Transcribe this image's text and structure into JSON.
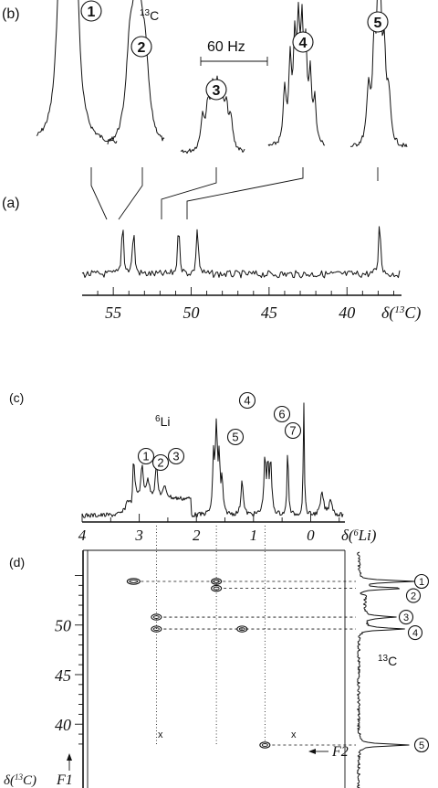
{
  "chart_data": [
    {
      "type": "line",
      "panel": "(b)",
      "nucleus": "13C",
      "scale_bar_label": "60 Hz",
      "multiplets": [
        {
          "label": "1",
          "center_ppm": 54.4
        },
        {
          "label": "2",
          "center_ppm": 53.7
        },
        {
          "label": "3",
          "center_ppm": 50.8
        },
        {
          "label": "4",
          "center_ppm": 49.6
        },
        {
          "label": "5",
          "center_ppm": 37.9
        }
      ]
    },
    {
      "type": "line",
      "panel": "(a)",
      "xlabel": "δ(13C)",
      "xlim": [
        57,
        36.5
      ],
      "x_ticks": [
        "55",
        "50",
        "45",
        "40"
      ],
      "peaks_ppm": [
        54.4,
        53.7,
        50.8,
        49.6,
        37.9
      ]
    },
    {
      "type": "line",
      "panel": "(c)",
      "nucleus": "6Li",
      "xlabel": "δ(6Li)",
      "xlim": [
        4,
        -0.6
      ],
      "x_ticks": [
        "4",
        "3",
        "2",
        "1",
        "0"
      ],
      "peaks": [
        {
          "label": "1",
          "ppm": 3.1
        },
        {
          "label": "2",
          "ppm": 2.95
        },
        {
          "label": "3",
          "ppm": 2.7
        },
        {
          "label": "4",
          "ppm": 1.65
        },
        {
          "label": "5",
          "ppm": 1.2
        },
        {
          "label": "6",
          "ppm": 0.8
        },
        {
          "label": "7",
          "ppm": 0.7
        }
      ]
    },
    {
      "type": "scatter",
      "panel": "(d)",
      "xlabel": "F2",
      "ylabel": "δ(13C)",
      "y_axis_label_extra": "F1",
      "ylim": [
        37,
        56
      ],
      "y_ticks": [
        "50",
        "45",
        "40"
      ],
      "side_spectrum_label": "13C",
      "side_peaks": [
        {
          "label": "1",
          "ppm": 54.4
        },
        {
          "label": "2",
          "ppm": 53.7
        },
        {
          "label": "3",
          "ppm": 50.8
        },
        {
          "label": "4",
          "ppm": 49.6
        },
        {
          "label": "5",
          "ppm": 37.9
        }
      ],
      "cross_peaks": [
        {
          "li_ppm": 3.1,
          "c_ppm": 54.4
        },
        {
          "li_ppm": 1.65,
          "c_ppm": 54.4
        },
        {
          "li_ppm": 1.65,
          "c_ppm": 53.7
        },
        {
          "li_ppm": 2.7,
          "c_ppm": 49.6
        },
        {
          "li_ppm": 1.2,
          "c_ppm": 49.6
        },
        {
          "li_ppm": 2.7,
          "c_ppm": 50.8
        },
        {
          "li_ppm": 0.8,
          "c_ppm": 37.9
        }
      ],
      "x_marker": "x"
    }
  ]
}
